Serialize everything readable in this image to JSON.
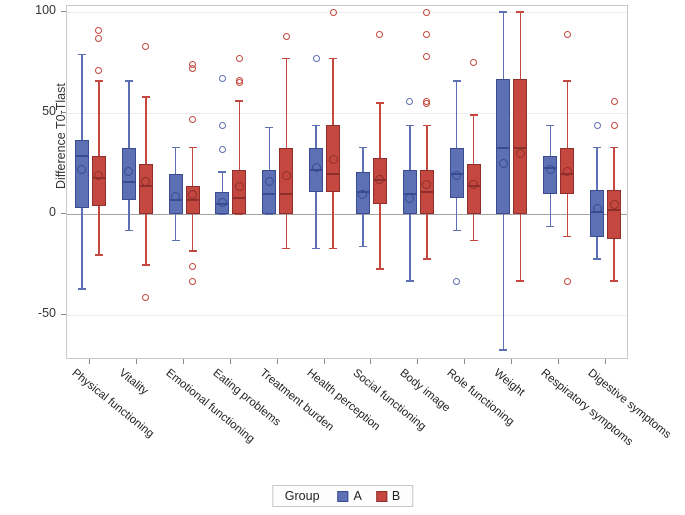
{
  "chart_data": {
    "type": "boxplot",
    "title": "",
    "xlabel": "",
    "ylabel": "Difference T0-Tlast",
    "ylim": [
      -72,
      103
    ],
    "yticks": [
      100,
      50,
      0,
      -50
    ],
    "grid": "horizontal",
    "zero_reference_line": true,
    "legend": {
      "title": "Group",
      "position": "bottom",
      "items": [
        "A",
        "B"
      ]
    },
    "colors": {
      "A": {
        "fill": "#5D70B3",
        "stroke": "#3A4B94"
      },
      "B": {
        "fill": "#C4483F",
        "stroke": "#8F2F2B"
      }
    },
    "categories": [
      "Physical functioning",
      "Vitality",
      "Emotional functioning",
      "Eating problems",
      "Treatment burden",
      "Health perception",
      "Social functioning",
      "Body image",
      "Role functioning",
      "Weight",
      "Respiratory symptoms",
      "Digestive symptoms"
    ],
    "series": [
      {
        "name": "A",
        "data": [
          {
            "low": -37,
            "q1": 3,
            "median": 29,
            "q3": 37,
            "high": 79,
            "mean": 22,
            "outliers": []
          },
          {
            "low": -8,
            "q1": 7,
            "median": 16,
            "q3": 33,
            "high": 66,
            "mean": 21,
            "outliers": []
          },
          {
            "low": -13,
            "q1": 0,
            "median": 7,
            "q3": 20,
            "high": 33,
            "mean": 9,
            "outliers": []
          },
          {
            "low": 0,
            "q1": 0,
            "median": 5,
            "q3": 11,
            "high": 21,
            "mean": 6,
            "outliers": [
              67,
              44,
              32
            ]
          },
          {
            "low": 0,
            "q1": 0,
            "median": 10,
            "q3": 22,
            "high": 43,
            "mean": 16,
            "outliers": []
          },
          {
            "low": -17,
            "q1": 11,
            "median": 22,
            "q3": 33,
            "high": 44,
            "mean": 23,
            "outliers": [
              77
            ]
          },
          {
            "low": -16,
            "q1": 0,
            "median": 11,
            "q3": 21,
            "high": 33,
            "mean": 10,
            "outliers": []
          },
          {
            "low": -33,
            "q1": 0,
            "median": 10,
            "q3": 22,
            "high": 44,
            "mean": 8,
            "outliers": [
              56
            ]
          },
          {
            "low": -8,
            "q1": 8,
            "median": 20,
            "q3": 33,
            "high": 66,
            "mean": 19,
            "outliers": [
              -33
            ]
          },
          {
            "low": -67,
            "q1": 0,
            "median": 33,
            "q3": 67,
            "high": 100,
            "mean": 25,
            "outliers": []
          },
          {
            "low": -6,
            "q1": 10,
            "median": 23,
            "q3": 29,
            "high": 44,
            "mean": 22,
            "outliers": []
          },
          {
            "low": -22,
            "q1": -11,
            "median": 1,
            "q3": 12,
            "high": 33,
            "mean": 3,
            "outliers": [
              44
            ]
          }
        ]
      },
      {
        "name": "B",
        "data": [
          {
            "low": -20,
            "q1": 4,
            "median": 18,
            "q3": 29,
            "high": 66,
            "mean": 19,
            "outliers": [
              91,
              87,
              71
            ]
          },
          {
            "low": -25,
            "q1": 0,
            "median": 14,
            "q3": 25,
            "high": 58,
            "mean": 16,
            "outliers": [
              83,
              -41
            ]
          },
          {
            "low": -18,
            "q1": 0,
            "median": 7,
            "q3": 14,
            "high": 33,
            "mean": 10,
            "outliers": [
              74,
              72,
              47,
              -26,
              -33
            ]
          },
          {
            "low": 0,
            "q1": 0,
            "median": 8,
            "q3": 22,
            "high": 56,
            "mean": 14,
            "outliers": [
              77,
              66,
              65
            ]
          },
          {
            "low": -17,
            "q1": 0,
            "median": 10,
            "q3": 33,
            "high": 77,
            "mean": 19,
            "outliers": [
              88
            ]
          },
          {
            "low": -17,
            "q1": 11,
            "median": 20,
            "q3": 44,
            "high": 77,
            "mean": 27,
            "outliers": [
              100
            ]
          },
          {
            "low": -27,
            "q1": 5,
            "median": 17,
            "q3": 28,
            "high": 55,
            "mean": 17,
            "outliers": [
              89
            ]
          },
          {
            "low": -22,
            "q1": 0,
            "median": 11,
            "q3": 22,
            "high": 44,
            "mean": 15,
            "outliers": [
              100,
              89,
              78,
              56,
              55
            ]
          },
          {
            "low": -13,
            "q1": 0,
            "median": 14,
            "q3": 25,
            "high": 49,
            "mean": 15,
            "outliers": [
              75
            ]
          },
          {
            "low": -33,
            "q1": 0,
            "median": 33,
            "q3": 67,
            "high": 100,
            "mean": 30,
            "outliers": []
          },
          {
            "low": -11,
            "q1": 10,
            "median": 20,
            "q3": 33,
            "high": 66,
            "mean": 21,
            "outliers": [
              89,
              -33
            ]
          },
          {
            "low": -33,
            "q1": -12,
            "median": 2,
            "q3": 12,
            "high": 33,
            "mean": 5,
            "outliers": [
              56,
              44
            ]
          }
        ]
      }
    ]
  }
}
